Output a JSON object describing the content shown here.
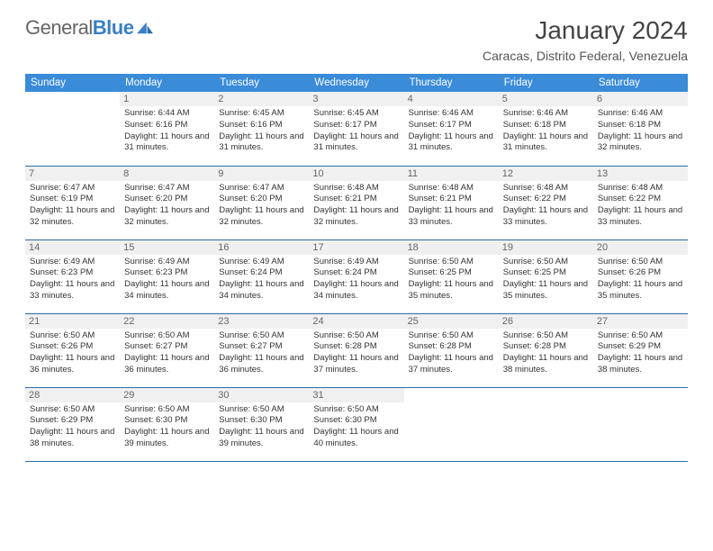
{
  "brand": {
    "part1": "General",
    "part2": "Blue"
  },
  "title": "January 2024",
  "location": "Caracas, Distrito Federal, Venezuela",
  "colors": {
    "header_bg": "#3a8bd8",
    "header_text": "#ffffff",
    "row_divider": "#2d6ba8",
    "daynum_bg": "#f0f0f0",
    "text": "#333333",
    "brand_blue": "#3a7fc4"
  },
  "typography": {
    "title_fontsize": 28,
    "location_fontsize": 14,
    "cell_fontsize": 9.5
  },
  "weekdays": [
    "Sunday",
    "Monday",
    "Tuesday",
    "Wednesday",
    "Thursday",
    "Friday",
    "Saturday"
  ],
  "weeks": [
    [
      null,
      {
        "n": "1",
        "sr": "6:44 AM",
        "ss": "6:16 PM",
        "dl": "11 hours and 31 minutes."
      },
      {
        "n": "2",
        "sr": "6:45 AM",
        "ss": "6:16 PM",
        "dl": "11 hours and 31 minutes."
      },
      {
        "n": "3",
        "sr": "6:45 AM",
        "ss": "6:17 PM",
        "dl": "11 hours and 31 minutes."
      },
      {
        "n": "4",
        "sr": "6:46 AM",
        "ss": "6:17 PM",
        "dl": "11 hours and 31 minutes."
      },
      {
        "n": "5",
        "sr": "6:46 AM",
        "ss": "6:18 PM",
        "dl": "11 hours and 31 minutes."
      },
      {
        "n": "6",
        "sr": "6:46 AM",
        "ss": "6:18 PM",
        "dl": "11 hours and 32 minutes."
      }
    ],
    [
      {
        "n": "7",
        "sr": "6:47 AM",
        "ss": "6:19 PM",
        "dl": "11 hours and 32 minutes."
      },
      {
        "n": "8",
        "sr": "6:47 AM",
        "ss": "6:20 PM",
        "dl": "11 hours and 32 minutes."
      },
      {
        "n": "9",
        "sr": "6:47 AM",
        "ss": "6:20 PM",
        "dl": "11 hours and 32 minutes."
      },
      {
        "n": "10",
        "sr": "6:48 AM",
        "ss": "6:21 PM",
        "dl": "11 hours and 32 minutes."
      },
      {
        "n": "11",
        "sr": "6:48 AM",
        "ss": "6:21 PM",
        "dl": "11 hours and 33 minutes."
      },
      {
        "n": "12",
        "sr": "6:48 AM",
        "ss": "6:22 PM",
        "dl": "11 hours and 33 minutes."
      },
      {
        "n": "13",
        "sr": "6:48 AM",
        "ss": "6:22 PM",
        "dl": "11 hours and 33 minutes."
      }
    ],
    [
      {
        "n": "14",
        "sr": "6:49 AM",
        "ss": "6:23 PM",
        "dl": "11 hours and 33 minutes."
      },
      {
        "n": "15",
        "sr": "6:49 AM",
        "ss": "6:23 PM",
        "dl": "11 hours and 34 minutes."
      },
      {
        "n": "16",
        "sr": "6:49 AM",
        "ss": "6:24 PM",
        "dl": "11 hours and 34 minutes."
      },
      {
        "n": "17",
        "sr": "6:49 AM",
        "ss": "6:24 PM",
        "dl": "11 hours and 34 minutes."
      },
      {
        "n": "18",
        "sr": "6:50 AM",
        "ss": "6:25 PM",
        "dl": "11 hours and 35 minutes."
      },
      {
        "n": "19",
        "sr": "6:50 AM",
        "ss": "6:25 PM",
        "dl": "11 hours and 35 minutes."
      },
      {
        "n": "20",
        "sr": "6:50 AM",
        "ss": "6:26 PM",
        "dl": "11 hours and 35 minutes."
      }
    ],
    [
      {
        "n": "21",
        "sr": "6:50 AM",
        "ss": "6:26 PM",
        "dl": "11 hours and 36 minutes."
      },
      {
        "n": "22",
        "sr": "6:50 AM",
        "ss": "6:27 PM",
        "dl": "11 hours and 36 minutes."
      },
      {
        "n": "23",
        "sr": "6:50 AM",
        "ss": "6:27 PM",
        "dl": "11 hours and 36 minutes."
      },
      {
        "n": "24",
        "sr": "6:50 AM",
        "ss": "6:28 PM",
        "dl": "11 hours and 37 minutes."
      },
      {
        "n": "25",
        "sr": "6:50 AM",
        "ss": "6:28 PM",
        "dl": "11 hours and 37 minutes."
      },
      {
        "n": "26",
        "sr": "6:50 AM",
        "ss": "6:28 PM",
        "dl": "11 hours and 38 minutes."
      },
      {
        "n": "27",
        "sr": "6:50 AM",
        "ss": "6:29 PM",
        "dl": "11 hours and 38 minutes."
      }
    ],
    [
      {
        "n": "28",
        "sr": "6:50 AM",
        "ss": "6:29 PM",
        "dl": "11 hours and 38 minutes."
      },
      {
        "n": "29",
        "sr": "6:50 AM",
        "ss": "6:30 PM",
        "dl": "11 hours and 39 minutes."
      },
      {
        "n": "30",
        "sr": "6:50 AM",
        "ss": "6:30 PM",
        "dl": "11 hours and 39 minutes."
      },
      {
        "n": "31",
        "sr": "6:50 AM",
        "ss": "6:30 PM",
        "dl": "11 hours and 40 minutes."
      },
      null,
      null,
      null
    ]
  ],
  "labels": {
    "sunrise": "Sunrise:",
    "sunset": "Sunset:",
    "daylight": "Daylight:"
  }
}
